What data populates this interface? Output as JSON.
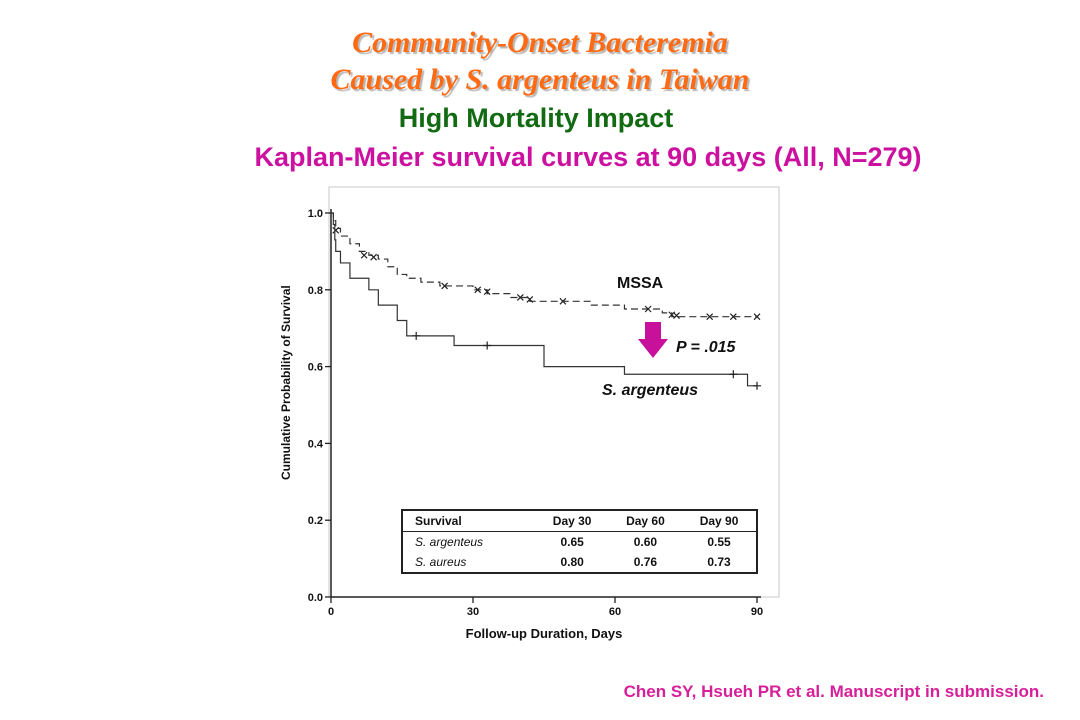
{
  "slide": {
    "title_line1": "Community-Onset Bacteremia",
    "title_line2": "Caused by S. argenteus in Taiwan",
    "subtitle": "High Mortality Impact",
    "heading": "Kaplan-Meier survival curves at 90 days (All, N=279)",
    "citation": "Chen SY, Hsueh PR et al. Manuscript in submission."
  },
  "colors": {
    "title": "#ff6a13",
    "subtitle": "#126a12",
    "heading": "#cc109f",
    "arrow": "#c8119a"
  },
  "chart_data": {
    "type": "line",
    "xlabel": "Follow-up Duration, Days",
    "ylabel": "Cumulative Probability of Survival",
    "xlim": [
      0,
      90
    ],
    "ylim": [
      0,
      1.0
    ],
    "xticks": [
      0,
      30,
      60,
      90
    ],
    "yticks": [
      0.0,
      0.2,
      0.4,
      0.6,
      0.8,
      1.0
    ],
    "annotation_p": "P = .015",
    "series": [
      {
        "name": "MSSA",
        "style": "dashed",
        "steps": [
          [
            0,
            1.0
          ],
          [
            0.5,
            0.98
          ],
          [
            1,
            0.96
          ],
          [
            2,
            0.94
          ],
          [
            4,
            0.92
          ],
          [
            6,
            0.9
          ],
          [
            8,
            0.89
          ],
          [
            10,
            0.88
          ],
          [
            12,
            0.86
          ],
          [
            14,
            0.84
          ],
          [
            16,
            0.83
          ],
          [
            19,
            0.82
          ],
          [
            23,
            0.81
          ],
          [
            30,
            0.8
          ],
          [
            33,
            0.79
          ],
          [
            38,
            0.78
          ],
          [
            42,
            0.77
          ],
          [
            50,
            0.77
          ],
          [
            55,
            0.76
          ],
          [
            62,
            0.75
          ],
          [
            70,
            0.74
          ],
          [
            72,
            0.73
          ],
          [
            90,
            0.73
          ]
        ],
        "censored": [
          [
            1,
            0.955
          ],
          [
            7,
            0.89
          ],
          [
            9,
            0.885
          ],
          [
            24,
            0.81
          ],
          [
            31,
            0.8
          ],
          [
            33,
            0.795
          ],
          [
            40,
            0.78
          ],
          [
            42,
            0.775
          ],
          [
            49,
            0.77
          ],
          [
            67,
            0.75
          ],
          [
            72,
            0.735
          ],
          [
            73,
            0.733
          ],
          [
            80,
            0.73
          ],
          [
            85,
            0.73
          ],
          [
            90,
            0.73
          ]
        ]
      },
      {
        "name": "S. argenteus",
        "style": "solid",
        "steps": [
          [
            0,
            1.0
          ],
          [
            0.5,
            0.97
          ],
          [
            0.8,
            0.93
          ],
          [
            1,
            0.9
          ],
          [
            2,
            0.87
          ],
          [
            4,
            0.83
          ],
          [
            8,
            0.8
          ],
          [
            10,
            0.76
          ],
          [
            14,
            0.72
          ],
          [
            16,
            0.68
          ],
          [
            26,
            0.655
          ],
          [
            45,
            0.6
          ],
          [
            62,
            0.58
          ],
          [
            88,
            0.55
          ],
          [
            90,
            0.55
          ]
        ],
        "censored": [
          [
            18,
            0.68
          ],
          [
            33,
            0.655
          ],
          [
            85,
            0.58
          ],
          [
            90,
            0.55
          ]
        ]
      }
    ],
    "table": {
      "headers": [
        "Survival",
        "Day 30",
        "Day 60",
        "Day 90"
      ],
      "rows": [
        [
          "S. argenteus",
          "0.65",
          "0.60",
          "0.55"
        ],
        [
          "S. aureus",
          "0.80",
          "0.76",
          "0.73"
        ]
      ]
    }
  }
}
